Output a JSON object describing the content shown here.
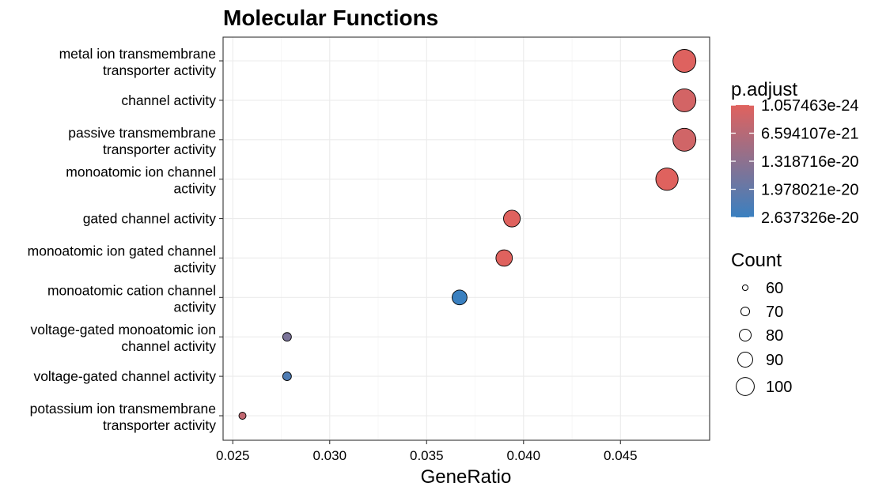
{
  "chart_data": {
    "type": "scatter",
    "title": "Molecular Functions",
    "xlabel": "GeneRatio",
    "ylabel": "",
    "xlim": [
      0.0245,
      0.0496
    ],
    "x_ticks": [
      "0.025",
      "0.030",
      "0.035",
      "0.040",
      "0.045"
    ],
    "x_tick_values": [
      0.025,
      0.03,
      0.035,
      0.04,
      0.045
    ],
    "grid": true,
    "legend_position": "right",
    "categories": [
      [
        "metal ion transmembrane",
        "transporter activity"
      ],
      [
        "channel activity"
      ],
      [
        "passive transmembrane",
        "transporter activity"
      ],
      [
        "monoatomic ion channel",
        "activity"
      ],
      [
        "gated channel activity"
      ],
      [
        "monoatomic ion gated channel",
        "activity"
      ],
      [
        "monoatomic cation channel",
        "activity"
      ],
      [
        "voltage-gated monoatomic ion",
        "channel activity"
      ],
      [
        "voltage-gated channel activity"
      ],
      [
        "potassium ion transmembrane",
        "transporter activity"
      ]
    ],
    "points": [
      {
        "gene_ratio": 0.0483,
        "count": 108,
        "p_adjust": 3e-22
      },
      {
        "gene_ratio": 0.0483,
        "count": 108,
        "p_adjust": 2e-21
      },
      {
        "gene_ratio": 0.0483,
        "count": 108,
        "p_adjust": 2.5e-21
      },
      {
        "gene_ratio": 0.0474,
        "count": 106,
        "p_adjust": 1e-22
      },
      {
        "gene_ratio": 0.0394,
        "count": 88,
        "p_adjust": 1e-22
      },
      {
        "gene_ratio": 0.039,
        "count": 87,
        "p_adjust": 1e-22
      },
      {
        "gene_ratio": 0.0367,
        "count": 82,
        "p_adjust": 2.637326e-20
      },
      {
        "gene_ratio": 0.0278,
        "count": 62,
        "p_adjust": 1.6e-20
      },
      {
        "gene_ratio": 0.0278,
        "count": 62,
        "p_adjust": 2.3e-20
      },
      {
        "gene_ratio": 0.0255,
        "count": 57,
        "p_adjust": 5e-21
      }
    ],
    "color_legend": {
      "title": "p.adjust",
      "labels": [
        "1.057463e-24",
        "6.594107e-21",
        "1.318716e-20",
        "1.978021e-20",
        "2.637326e-20"
      ],
      "values": [
        1.057463e-24,
        6.594107e-21,
        1.318716e-20,
        1.978021e-20,
        2.637326e-20
      ],
      "color_low": "#E0625E",
      "color_high": "#3A80C0"
    },
    "size_legend": {
      "title": "Count",
      "labels": [
        "60",
        "70",
        "80",
        "90",
        "100"
      ],
      "values": [
        60,
        70,
        80,
        90,
        100
      ]
    }
  }
}
